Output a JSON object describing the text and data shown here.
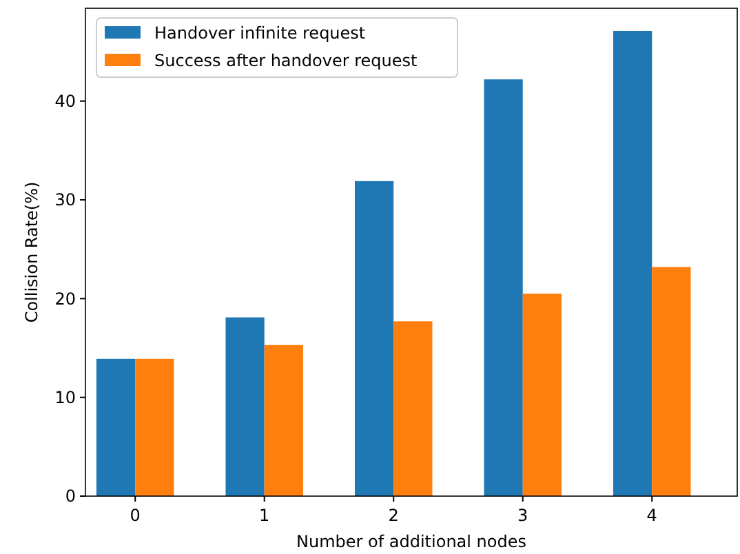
{
  "chart_data": {
    "type": "bar",
    "xlabel": "Number of additional nodes",
    "ylabel": "Collision Rate(%)",
    "categories": [
      "0",
      "1",
      "2",
      "3",
      "4"
    ],
    "series": [
      {
        "name": "Handover infinite request",
        "color": "#1f77b4",
        "values": [
          13.9,
          18.1,
          31.9,
          42.2,
          47.1
        ]
      },
      {
        "name": "Success after handover request",
        "color": "#ff7f0e",
        "values": [
          13.9,
          15.3,
          17.7,
          20.5,
          23.2
        ]
      }
    ],
    "ylim": [
      0,
      49.4
    ],
    "yticks": [
      0,
      10,
      20,
      30,
      40
    ],
    "grid": false,
    "legend": "top left"
  }
}
